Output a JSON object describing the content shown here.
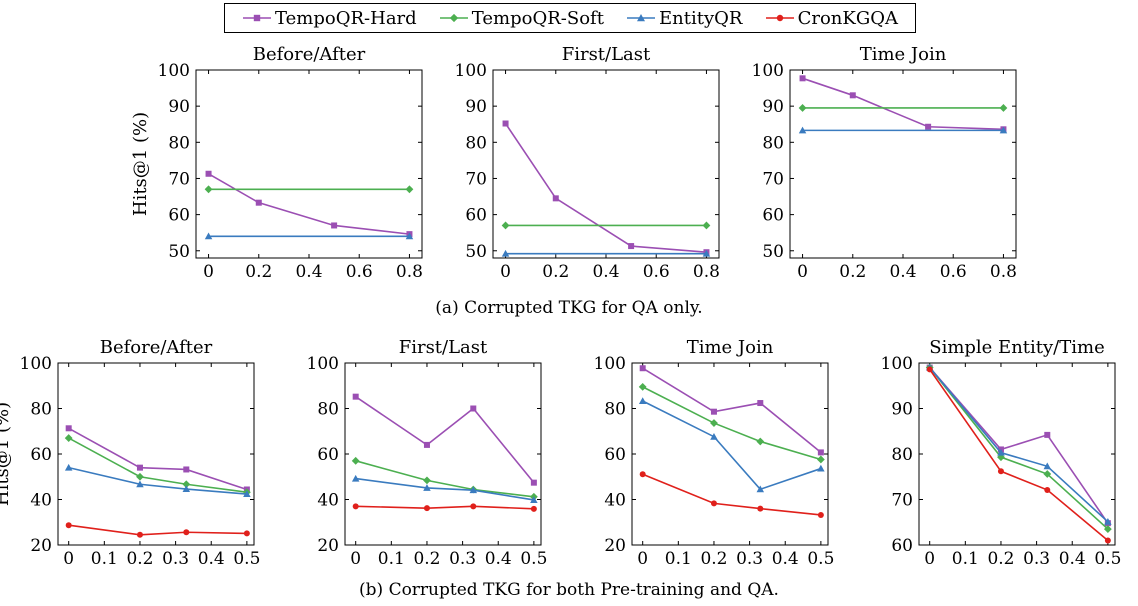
{
  "legend": [
    {
      "name": "TempoQR-Hard",
      "color": "#9b4fb3",
      "marker": "square"
    },
    {
      "name": "TempoQR-Soft",
      "color": "#4caf50",
      "marker": "diamond"
    },
    {
      "name": "EntityQR",
      "color": "#3a7bbf",
      "marker": "triangle"
    },
    {
      "name": "CronKGQA",
      "color": "#e0201b",
      "marker": "circle"
    }
  ],
  "captions": {
    "a": "(a) Corrupted TKG for QA only.",
    "b": "(b) Corrupted TKG for both Pre-training and QA."
  },
  "chart_data": [
    {
      "type": "line",
      "title": "Before/After",
      "ylabel": "Hits@1 (%)",
      "xlim": [
        -0.05,
        0.85
      ],
      "ylim": [
        48,
        100
      ],
      "xticks": [
        0,
        0.2,
        0.4,
        0.6,
        0.8
      ],
      "xtick_labels": [
        "0",
        "0.2",
        "0.4",
        "0.6",
        "0.8"
      ],
      "yticks": [
        50,
        60,
        70,
        80,
        90,
        100
      ],
      "ytick_labels": [
        "50",
        "60",
        "70",
        "80",
        "90",
        "100"
      ],
      "series": [
        {
          "name": "TempoQR-Hard",
          "x": [
            0,
            0.2,
            0.5,
            0.8
          ],
          "y": [
            71.3,
            63.3,
            57,
            54.6
          ]
        },
        {
          "name": "TempoQR-Soft",
          "x": [
            0,
            0.8
          ],
          "y": [
            67,
            67
          ]
        },
        {
          "name": "EntityQR",
          "x": [
            0,
            0.8
          ],
          "y": [
            54,
            54
          ]
        }
      ]
    },
    {
      "type": "line",
      "title": "First/Last",
      "ylabel": "",
      "xlim": [
        -0.05,
        0.85
      ],
      "ylim": [
        48,
        100
      ],
      "xticks": [
        0,
        0.2,
        0.4,
        0.6,
        0.8
      ],
      "xtick_labels": [
        "0",
        "0.2",
        "0.4",
        "0.6",
        "0.8"
      ],
      "yticks": [
        50,
        60,
        70,
        80,
        90,
        100
      ],
      "ytick_labels": [
        "50",
        "60",
        "70",
        "80",
        "90",
        "100"
      ],
      "series": [
        {
          "name": "TempoQR-Hard",
          "x": [
            0,
            0.2,
            0.5,
            0.8
          ],
          "y": [
            85.2,
            64.5,
            51.3,
            49.6
          ]
        },
        {
          "name": "TempoQR-Soft",
          "x": [
            0,
            0.8
          ],
          "y": [
            57,
            57
          ]
        },
        {
          "name": "EntityQR",
          "x": [
            0,
            0.8
          ],
          "y": [
            49.2,
            49.2
          ]
        }
      ]
    },
    {
      "type": "line",
      "title": "Time Join",
      "ylabel": "",
      "xlim": [
        -0.05,
        0.85
      ],
      "ylim": [
        48,
        100
      ],
      "xticks": [
        0,
        0.2,
        0.4,
        0.6,
        0.8
      ],
      "xtick_labels": [
        "0",
        "0.2",
        "0.4",
        "0.6",
        "0.8"
      ],
      "yticks": [
        50,
        60,
        70,
        80,
        90,
        100
      ],
      "ytick_labels": [
        "50",
        "60",
        "70",
        "80",
        "90",
        "100"
      ],
      "series": [
        {
          "name": "TempoQR-Hard",
          "x": [
            0,
            0.2,
            0.5,
            0.8
          ],
          "y": [
            97.7,
            93,
            84.3,
            83.6
          ]
        },
        {
          "name": "TempoQR-Soft",
          "x": [
            0,
            0.8
          ],
          "y": [
            89.5,
            89.5
          ]
        },
        {
          "name": "EntityQR",
          "x": [
            0,
            0.8
          ],
          "y": [
            83.3,
            83.3
          ]
        }
      ]
    },
    {
      "type": "line",
      "title": "Before/After",
      "ylabel": "Hits@1 (%)",
      "xlim": [
        -0.03,
        0.52
      ],
      "ylim": [
        20,
        100
      ],
      "xticks": [
        0,
        0.1,
        0.2,
        0.3,
        0.4,
        0.5
      ],
      "xtick_labels": [
        "0",
        "0.1",
        "0.2",
        "0.3",
        "0.4",
        "0.5"
      ],
      "yticks": [
        20,
        40,
        60,
        80,
        100
      ],
      "ytick_labels": [
        "20",
        "40",
        "60",
        "80",
        "100"
      ],
      "series": [
        {
          "name": "TempoQR-Hard",
          "x": [
            0,
            0.2,
            0.33,
            0.5
          ],
          "y": [
            71.3,
            54,
            53.2,
            44.4
          ]
        },
        {
          "name": "TempoQR-Soft",
          "x": [
            0,
            0.2,
            0.33,
            0.5
          ],
          "y": [
            67,
            50,
            46.7,
            43.2
          ]
        },
        {
          "name": "EntityQR",
          "x": [
            0,
            0.2,
            0.33,
            0.5
          ],
          "y": [
            54,
            46.7,
            44.6,
            42.4
          ]
        },
        {
          "name": "CronKGQA",
          "x": [
            0,
            0.2,
            0.33,
            0.5
          ],
          "y": [
            28.7,
            24.5,
            25.6,
            25.1
          ]
        }
      ]
    },
    {
      "type": "line",
      "title": "First/Last",
      "ylabel": "",
      "xlim": [
        -0.03,
        0.52
      ],
      "ylim": [
        20,
        100
      ],
      "xticks": [
        0,
        0.1,
        0.2,
        0.3,
        0.4,
        0.5
      ],
      "xtick_labels": [
        "0",
        "0.1",
        "0.2",
        "0.3",
        "0.4",
        "0.5"
      ],
      "yticks": [
        20,
        40,
        60,
        80,
        100
      ],
      "ytick_labels": [
        "20",
        "40",
        "60",
        "80",
        "100"
      ],
      "series": [
        {
          "name": "TempoQR-Hard",
          "x": [
            0,
            0.2,
            0.33,
            0.5
          ],
          "y": [
            85.2,
            64,
            80,
            47.4
          ]
        },
        {
          "name": "TempoQR-Soft",
          "x": [
            0,
            0.2,
            0.33,
            0.5
          ],
          "y": [
            57,
            48.4,
            44.4,
            41.2
          ]
        },
        {
          "name": "EntityQR",
          "x": [
            0,
            0.2,
            0.33,
            0.5
          ],
          "y": [
            49.2,
            45.1,
            44.1,
            39.8
          ]
        },
        {
          "name": "CronKGQA",
          "x": [
            0,
            0.2,
            0.33,
            0.5
          ],
          "y": [
            37,
            36.2,
            37,
            35.9
          ]
        }
      ]
    },
    {
      "type": "line",
      "title": "Time Join",
      "ylabel": "",
      "xlim": [
        -0.03,
        0.52
      ],
      "ylim": [
        20,
        100
      ],
      "xticks": [
        0,
        0.1,
        0.2,
        0.3,
        0.4,
        0.5
      ],
      "xtick_labels": [
        "0",
        "0.1",
        "0.2",
        "0.3",
        "0.4",
        "0.5"
      ],
      "yticks": [
        20,
        40,
        60,
        80,
        100
      ],
      "ytick_labels": [
        "20",
        "40",
        "60",
        "80",
        "100"
      ],
      "series": [
        {
          "name": "TempoQR-Hard",
          "x": [
            0,
            0.2,
            0.33,
            0.5
          ],
          "y": [
            97.7,
            78.6,
            82.4,
            60.7
          ]
        },
        {
          "name": "TempoQR-Soft",
          "x": [
            0,
            0.2,
            0.33,
            0.5
          ],
          "y": [
            89.5,
            73.6,
            65.5,
            57.6
          ]
        },
        {
          "name": "EntityQR",
          "x": [
            0,
            0.2,
            0.33,
            0.5
          ],
          "y": [
            83.3,
            67.6,
            44.5,
            53.6
          ]
        },
        {
          "name": "CronKGQA",
          "x": [
            0,
            0.2,
            0.33,
            0.5
          ],
          "y": [
            51.1,
            38.3,
            36,
            33.2
          ]
        }
      ]
    },
    {
      "type": "line",
      "title": "Simple Entity/Time",
      "ylabel": "",
      "xlim": [
        -0.03,
        0.52
      ],
      "ylim": [
        60,
        100
      ],
      "xticks": [
        0,
        0.1,
        0.2,
        0.3,
        0.4,
        0.5
      ],
      "xtick_labels": [
        "0",
        "0.1",
        "0.2",
        "0.3",
        "0.4",
        "0.5"
      ],
      "yticks": [
        60,
        70,
        80,
        90,
        100
      ],
      "ytick_labels": [
        "60",
        "70",
        "80",
        "90",
        "100"
      ],
      "series": [
        {
          "name": "TempoQR-Hard",
          "x": [
            0,
            0.2,
            0.33,
            0.5
          ],
          "y": [
            99,
            81,
            84.2,
            64.8
          ]
        },
        {
          "name": "TempoQR-Soft",
          "x": [
            0,
            0.2,
            0.33,
            0.5
          ],
          "y": [
            99,
            79.3,
            75.6,
            63.5
          ]
        },
        {
          "name": "EntityQR",
          "x": [
            0,
            0.2,
            0.33,
            0.5
          ],
          "y": [
            99,
            80.3,
            77.3,
            65.1
          ]
        },
        {
          "name": "CronKGQA",
          "x": [
            0,
            0.2,
            0.33,
            0.5
          ],
          "y": [
            98.6,
            76.2,
            72.1,
            61
          ]
        }
      ]
    }
  ]
}
